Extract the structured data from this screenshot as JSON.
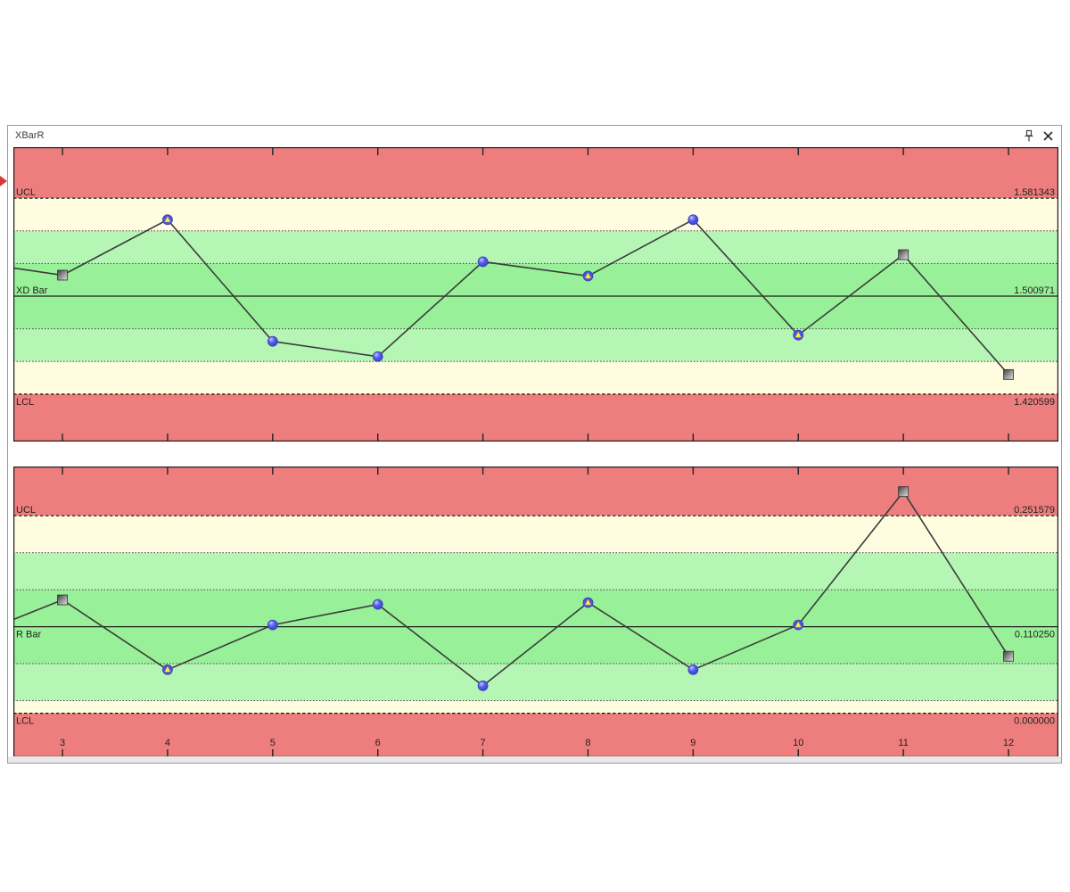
{
  "window": {
    "title": "XBarR",
    "titlebar_icons": [
      "pin",
      "close"
    ]
  },
  "colors": {
    "zone_red": "#ee7e7e",
    "zone_yellow": "#fffcdf",
    "zone_light_green": "#b5f6b5",
    "zone_dark_green": "#98f098",
    "series_line": "#3b3b3b",
    "marker_blue": "#5560ea",
    "marker_yellow": "#ffec4f",
    "marker_gray_dark": "#3f3f3f",
    "border_dark": "#1a1a1a"
  },
  "chart_data": [
    {
      "type": "line",
      "name": "xbar",
      "lines": {
        "ucl": {
          "label": "UCL",
          "value": 1.581343,
          "label_side": "above",
          "value_side": "above"
        },
        "center": {
          "label": "XD Bar",
          "value": 1.500971,
          "label_side": "above",
          "value_side": "above"
        },
        "lcl": {
          "label": "LCL",
          "value": 1.420599,
          "label_side": "below",
          "value_side": "below"
        }
      },
      "x": [
        3,
        4,
        5,
        6,
        7,
        8,
        9,
        10,
        11,
        12
      ],
      "values": [
        1.5182,
        1.5637,
        1.4639,
        1.4514,
        1.5292,
        1.5175,
        1.5637,
        1.469,
        1.535,
        1.4367
      ],
      "markers": [
        "square",
        "triangle",
        "circle",
        "circle",
        "circle",
        "triangle",
        "circle",
        "triangle",
        "square",
        "square"
      ],
      "edge_value": 1.5241,
      "ylim": [
        1.3817,
        1.6232
      ],
      "xlim": [
        2.533,
        12.475
      ],
      "show_x_labels": false,
      "zones": "sigma zones: red outside control limits, yellow 2-3 sigma, light green 1-2 sigma, dark green within 1 sigma",
      "legend": "none",
      "grid": "sigma zone dotted lines, dashed control limits, solid centerline"
    },
    {
      "type": "line",
      "name": "r",
      "lines": {
        "ucl": {
          "label": "UCL",
          "value": 0.251579,
          "label_side": "above",
          "value_side": "above"
        },
        "center": {
          "label": "R Bar",
          "value": 0.11025,
          "label_side": "below",
          "value_side": "below"
        },
        "lcl": {
          "label": "LCL",
          "value": 0.0,
          "label_side": "below",
          "value_side": "below"
        }
      },
      "x": [
        3,
        4,
        5,
        6,
        7,
        8,
        9,
        10,
        11,
        12
      ],
      "values": [
        0.1444,
        0.0555,
        0.1125,
        0.1387,
        0.035,
        0.141,
        0.0555,
        0.1125,
        0.2823,
        0.0726
      ],
      "markers": [
        "square",
        "triangle",
        "circle",
        "circle",
        "circle",
        "triangle",
        "circle",
        "triangle",
        "square",
        "square"
      ],
      "edge_value": 0.1194,
      "ylim": [
        -0.0561,
        0.3143
      ],
      "xlim": [
        2.533,
        12.475
      ],
      "show_x_labels": true,
      "zones": "sigma zones: red outside control limits, yellow 2-3 sigma, light green 1-2 sigma, dark green within 1 sigma",
      "legend": "none",
      "grid": "sigma zone dotted lines, dashed control limits, solid centerline"
    }
  ]
}
